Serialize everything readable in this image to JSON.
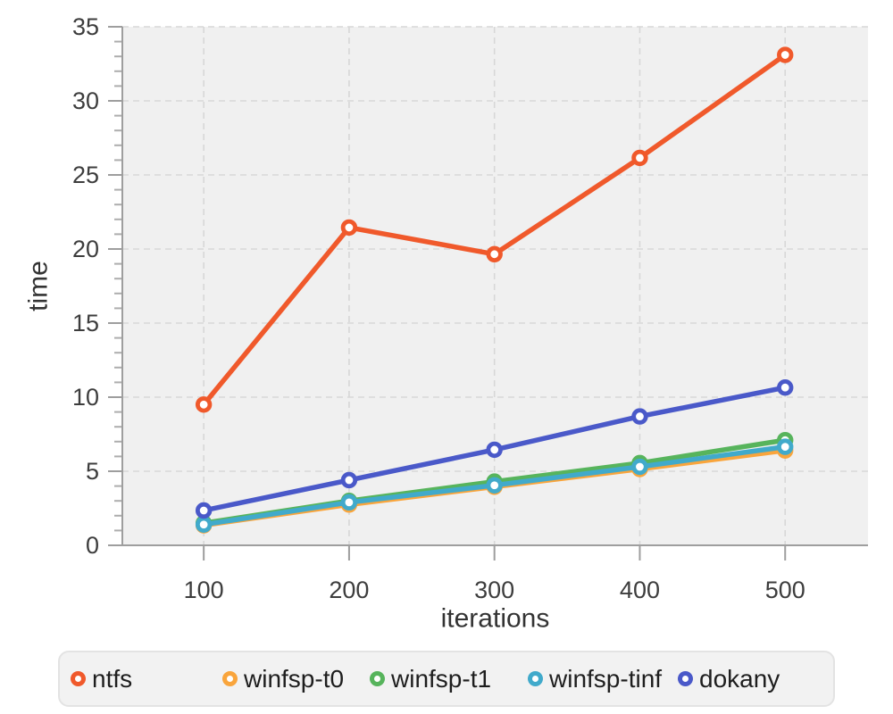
{
  "chart_data": {
    "type": "line",
    "title": "",
    "xlabel": "iterations",
    "ylabel": "time",
    "x": [
      100,
      200,
      300,
      400,
      500
    ],
    "x_ticks": [
      100,
      200,
      300,
      400,
      500
    ],
    "y_ticks": [
      0,
      5,
      10,
      15,
      20,
      25,
      30,
      35
    ],
    "x_range": [
      44,
      557
    ],
    "y_range": [
      0,
      35
    ],
    "y_minor_tick_step": 1,
    "grid": true,
    "grid_style": "dashed",
    "legend_position": "bottom",
    "series": [
      {
        "name": "ntfs",
        "color": "#F0592B",
        "values": [
          9.5,
          21.45,
          19.65,
          26.15,
          33.1
        ]
      },
      {
        "name": "winfsp-t0",
        "color": "#F9A53C",
        "values": [
          1.35,
          2.75,
          3.95,
          5.15,
          6.4
        ]
      },
      {
        "name": "winfsp-t1",
        "color": "#57B45C",
        "values": [
          1.5,
          3.0,
          4.3,
          5.55,
          7.1
        ]
      },
      {
        "name": "winfsp-tinf",
        "color": "#41AACB",
        "values": [
          1.4,
          2.9,
          4.05,
          5.3,
          6.65
        ]
      },
      {
        "name": "dokany",
        "color": "#4A59C9",
        "values": [
          2.35,
          4.4,
          6.45,
          8.7,
          10.65
        ]
      }
    ],
    "marker": "open-circle",
    "colors": {
      "plot_bg": "#F0F0F0",
      "grid": "#D7D7D7",
      "axis": "#9E9E9E",
      "minor_tick": "#ADADAD",
      "tick_label": "#3D3D3D",
      "axis_title": "#333333",
      "legend_bg": "#F2F2F2",
      "legend_border": "#E3E3E3",
      "legend_text": "#1E1E1E",
      "marker_fill": "#FFFFFF"
    }
  }
}
